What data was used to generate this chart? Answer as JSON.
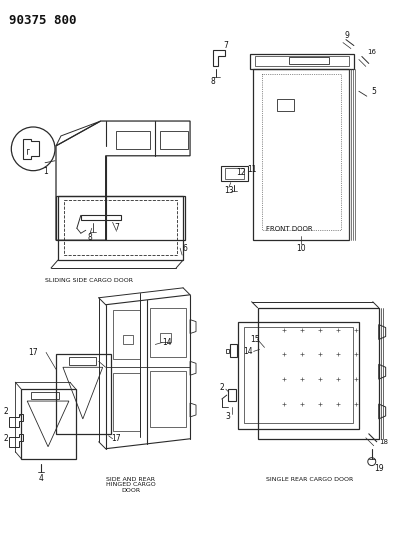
{
  "title": "90375 800",
  "bg_color": "#ffffff",
  "lc": "#2a2a2a",
  "lc_light": "#555555",
  "sections": {
    "tl_label": "SLIDING SIDE CARGO DOOR",
    "tr_label": "FRONT DOOR",
    "bl_label": "SIDE AND REAR\nHINGED CARGO\nDOOR",
    "br_label": "SINGLE REAR CARGO DOOR"
  }
}
